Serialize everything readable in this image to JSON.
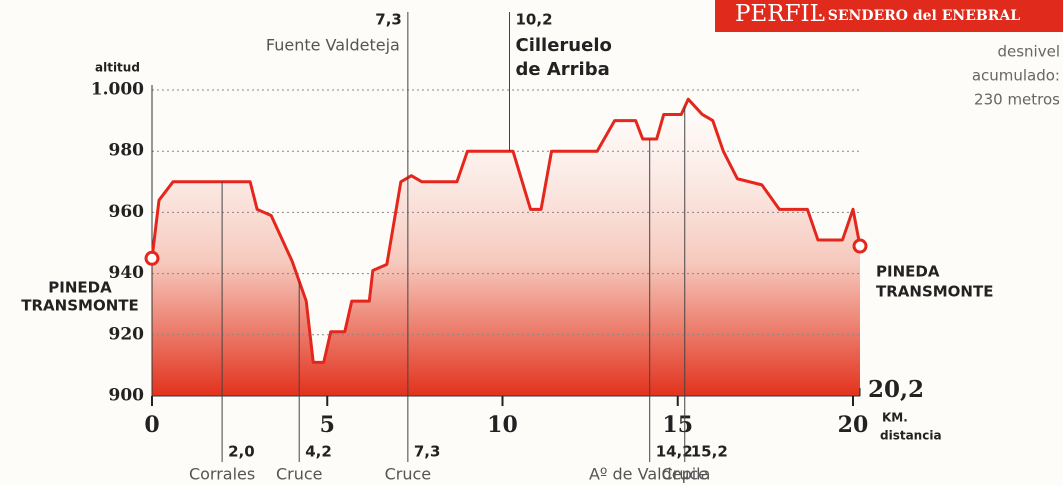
{
  "chart_data": {
    "type": "area",
    "title": "PERFIL",
    "subtitle": "· SENDERO del ENEBRAL",
    "note": [
      "desnivel",
      "acumulado:",
      "230 metros"
    ],
    "y_label": "altitud",
    "x_unit": "KM.",
    "x_label": "distancia",
    "start_label": [
      "PINEDA",
      "TRANSMONTE"
    ],
    "end_label": [
      "PINEDA",
      "TRANSMONTE"
    ],
    "x": [
      0,
      0.2,
      0.6,
      2.8,
      3.0,
      3.4,
      4.0,
      4.4,
      4.6,
      4.9,
      5.1,
      5.5,
      5.7,
      6.2,
      6.3,
      6.7,
      7.1,
      7.4,
      7.7,
      8.7,
      9.0,
      10.3,
      10.8,
      11.1,
      11.4,
      12.7,
      13.2,
      13.8,
      14.0,
      14.4,
      14.6,
      15.1,
      15.3,
      15.7,
      16.0,
      16.3,
      16.7,
      17.4,
      17.9,
      18.7,
      19.0,
      19.7,
      20.0,
      20.2
    ],
    "series": [
      {
        "name": "altitud",
        "color": "#e4261c",
        "values": [
          945,
          964,
          970,
          970,
          961,
          959,
          944,
          931,
          911,
          911,
          921,
          921,
          931,
          931,
          941,
          943,
          970,
          972,
          970,
          970,
          980,
          980,
          961,
          961,
          980,
          980,
          990,
          990,
          984,
          984,
          992,
          992,
          997,
          992,
          990,
          980,
          971,
          969,
          961,
          961,
          951,
          951,
          961,
          949
        ]
      }
    ],
    "xlim": [
      0,
      20.2
    ],
    "ylim": [
      900,
      1000
    ],
    "xticks": [
      0,
      5,
      10,
      15,
      20
    ],
    "yticks": [
      900,
      920,
      940,
      960,
      980,
      {
        "value": 1000,
        "label": "1.000"
      }
    ],
    "grid": true,
    "end_distance": {
      "value": 20.2,
      "label": "20,2"
    },
    "waypoints_top": [
      {
        "km": {
          "value": 7.3,
          "label": "7,3"
        },
        "name": [
          "Fuente Valdeteja"
        ]
      },
      {
        "km": {
          "value": 10.2,
          "label": "10,2"
        },
        "name": [
          "Cilleruelo",
          "de Arriba"
        ]
      }
    ],
    "waypoints_bottom": [
      {
        "km": {
          "value": 2.0,
          "label": "2,0"
        },
        "name": "Corrales"
      },
      {
        "km": {
          "value": 4.2,
          "label": "4,2"
        },
        "name": "Cruce"
      },
      {
        "km": {
          "value": 7.3,
          "label": "7,3"
        },
        "name": "Cruce"
      },
      {
        "km": {
          "value": 14.2,
          "label": "14,2"
        },
        "name": "Aº de Valdepila"
      },
      {
        "km": {
          "value": 15.2,
          "label": "15,2"
        },
        "name": "Cruce"
      }
    ]
  }
}
